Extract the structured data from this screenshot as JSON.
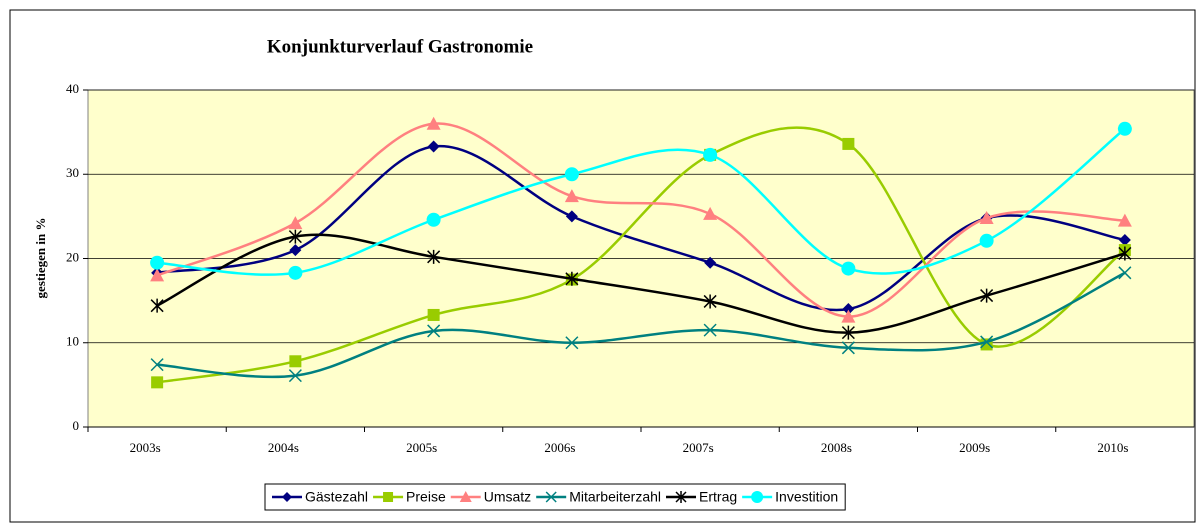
{
  "chart_data": {
    "type": "line",
    "title": "Konjunkturverlauf Gastronomie",
    "y_label": "gestiegen in %",
    "categories": [
      "2003s",
      "2004s",
      "2005s",
      "2006s",
      "2007s",
      "2008s",
      "2009s",
      "2010s"
    ],
    "series": [
      {
        "name": "Gästezahl",
        "color": "#000080",
        "marker": "diamond",
        "values": [
          18.3,
          21,
          33.3,
          25,
          19.5,
          14,
          24.8,
          22.2
        ]
      },
      {
        "name": "Preise",
        "color": "#99cc00",
        "marker": "square",
        "values": [
          5.3,
          7.8,
          13.3,
          17.5,
          32.3,
          33.6,
          9.8,
          21
        ]
      },
      {
        "name": "Umsatz",
        "color": "#ff8080",
        "marker": "triangle",
        "values": [
          18,
          24.2,
          36,
          27.4,
          25.3,
          13.1,
          24.8,
          24.5
        ]
      },
      {
        "name": "Mitarbeiterzahl",
        "color": "#008080",
        "marker": "x",
        "values": [
          7.4,
          6.1,
          11.4,
          10,
          11.5,
          9.4,
          10.1,
          18.3
        ]
      },
      {
        "name": "Ertrag",
        "color": "#000000",
        "marker": "star",
        "values": [
          14.4,
          22.6,
          20.2,
          17.6,
          14.9,
          11.2,
          15.6,
          20.6
        ]
      },
      {
        "name": "Investition",
        "color": "#00ffff",
        "marker": "circle",
        "values": [
          19.5,
          18.3,
          24.6,
          30,
          32.3,
          18.8,
          22.1,
          35.4
        ]
      }
    ],
    "ylim": [
      0,
      40
    ],
    "yticks": [
      0,
      10,
      20,
      30,
      40
    ],
    "grid": true,
    "legend": "bottom",
    "smooth": true
  }
}
